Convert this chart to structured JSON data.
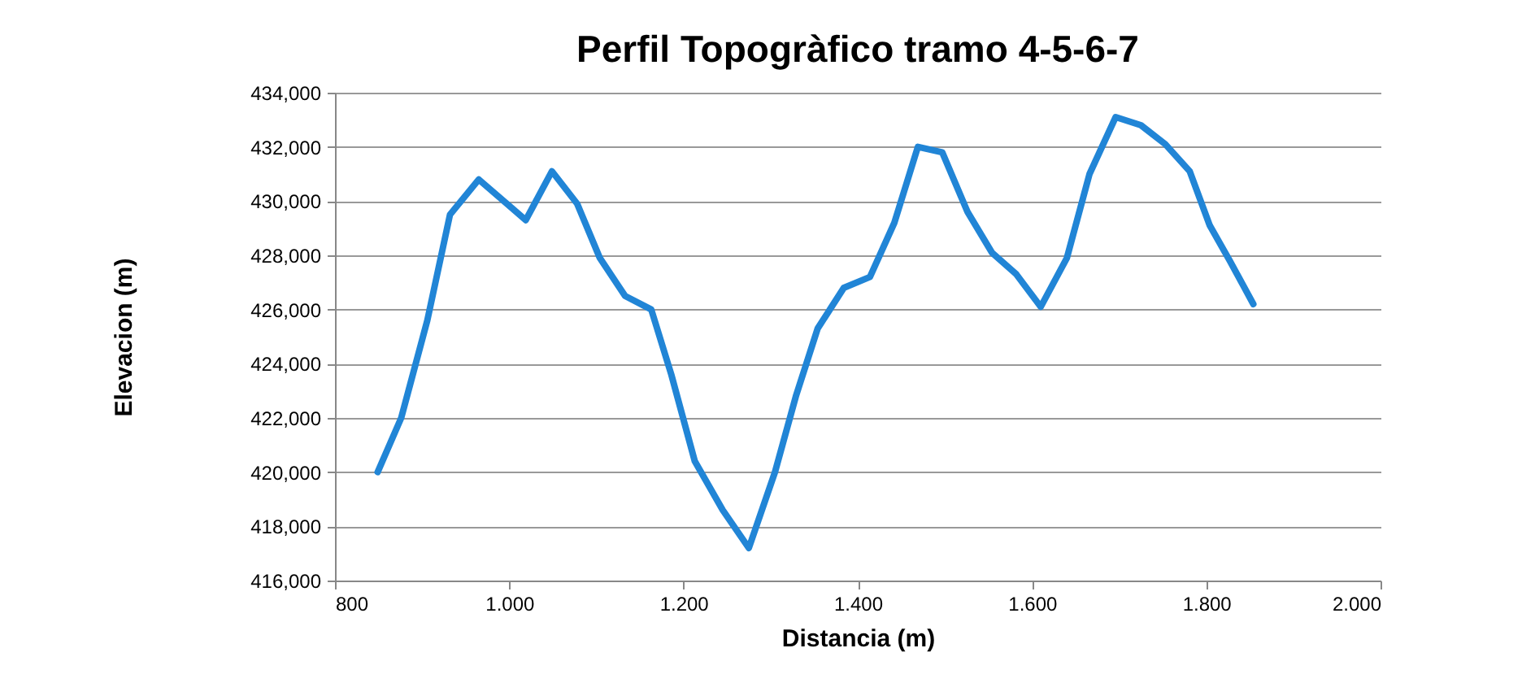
{
  "chart_data": {
    "type": "line",
    "title": "Perfil Topogràfico tramo 4-5-6-7",
    "xlabel": "Distancia (m)",
    "ylabel": "Elevacion (m)",
    "x": [
      849,
      876,
      906,
      932,
      965,
      1019,
      1049,
      1078,
      1104,
      1133,
      1163,
      1186,
      1213,
      1245,
      1275,
      1305,
      1329,
      1354,
      1384,
      1414,
      1442,
      1469,
      1497,
      1526,
      1554,
      1582,
      1610,
      1640,
      1666,
      1696,
      1725,
      1753,
      1781,
      1804,
      1827,
      1854
    ],
    "series": [
      {
        "color": "#2185d6",
        "values": [
          420.0,
          422.0,
          425.6,
          429.5,
          430.8,
          429.3,
          431.1,
          429.9,
          427.9,
          426.5,
          426.0,
          423.6,
          420.4,
          418.6,
          417.2,
          420.0,
          422.8,
          425.3,
          426.8,
          427.2,
          429.2,
          432.0,
          431.8,
          429.6,
          428.1,
          427.3,
          426.1,
          427.9,
          431.0,
          433.1,
          432.8,
          432.1,
          431.1,
          429.1,
          427.8,
          426.2
        ]
      }
    ],
    "xlim": [
      800,
      2000
    ],
    "xticks": [
      800,
      {
        "value": 1000,
        "label": "1.000"
      },
      {
        "value": 1200,
        "label": "1.200"
      },
      {
        "value": 1400,
        "label": "1.400"
      },
      {
        "value": 1600,
        "label": "1.600"
      },
      {
        "value": 1800,
        "label": "1.800"
      },
      {
        "value": 2000,
        "label": "2.000"
      }
    ],
    "ylim": [
      416,
      434
    ],
    "yticks": [
      {
        "value": 416,
        "label": "416,000"
      },
      {
        "value": 418,
        "label": "418,000"
      },
      {
        "value": 420,
        "label": "420,000"
      },
      {
        "value": 422,
        "label": "422,000"
      },
      {
        "value": 424,
        "label": "424,000"
      },
      {
        "value": 426,
        "label": "426,000"
      },
      {
        "value": 428,
        "label": "428,000"
      },
      {
        "value": 430,
        "label": "430,000"
      },
      {
        "value": 432,
        "label": "432,000"
      },
      {
        "value": 434,
        "label": "434,000"
      }
    ],
    "grid": "y",
    "marker": "none",
    "line_style": "solid"
  }
}
